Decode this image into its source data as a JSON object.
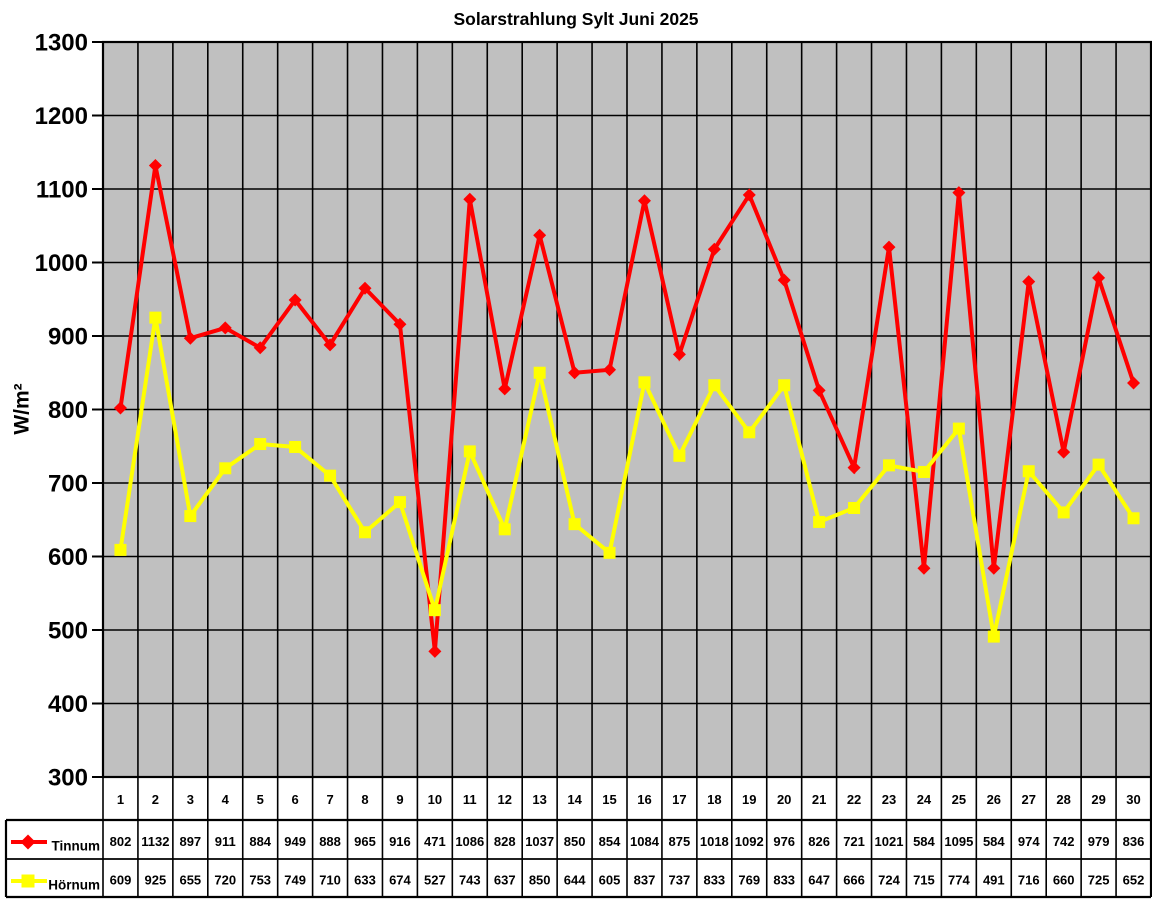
{
  "window": {
    "background": "#FFFFFF"
  },
  "chart_data": {
    "type": "line",
    "title": "Solarstrahlung Sylt Juni 2025",
    "ylabel": "W/m²",
    "xlabel": "",
    "ylim": [
      300,
      1300
    ],
    "ytick_step": 100,
    "yticks": [
      300,
      400,
      500,
      600,
      700,
      800,
      900,
      1000,
      1100,
      1200,
      1300
    ],
    "grid": true,
    "plot_bg": "#C0C0C0",
    "grid_color": "#000000",
    "axis_color": "#000000",
    "legend_position": "bottom-left-table",
    "categories": [
      "1",
      "2",
      "3",
      "4",
      "5",
      "6",
      "7",
      "8",
      "9",
      "10",
      "11",
      "12",
      "13",
      "14",
      "15",
      "16",
      "17",
      "18",
      "19",
      "20",
      "21",
      "22",
      "23",
      "24",
      "25",
      "26",
      "27",
      "28",
      "29",
      "30"
    ],
    "series": [
      {
        "name": "Tinnum",
        "color": "#FF0000",
        "marker": "diamond",
        "values": [
          802,
          1132,
          897,
          911,
          884,
          949,
          888,
          965,
          916,
          471,
          1086,
          828,
          1037,
          850,
          854,
          1084,
          875,
          1018,
          1092,
          976,
          826,
          721,
          1021,
          584,
          1095,
          584,
          974,
          742,
          979,
          836
        ]
      },
      {
        "name": "Hörnum",
        "color": "#FFFF00",
        "marker": "square",
        "values": [
          609,
          925,
          655,
          720,
          753,
          749,
          710,
          633,
          674,
          527,
          743,
          637,
          850,
          644,
          605,
          837,
          737,
          833,
          769,
          833,
          647,
          666,
          724,
          715,
          774,
          491,
          716,
          660,
          725,
          652
        ]
      }
    ]
  }
}
